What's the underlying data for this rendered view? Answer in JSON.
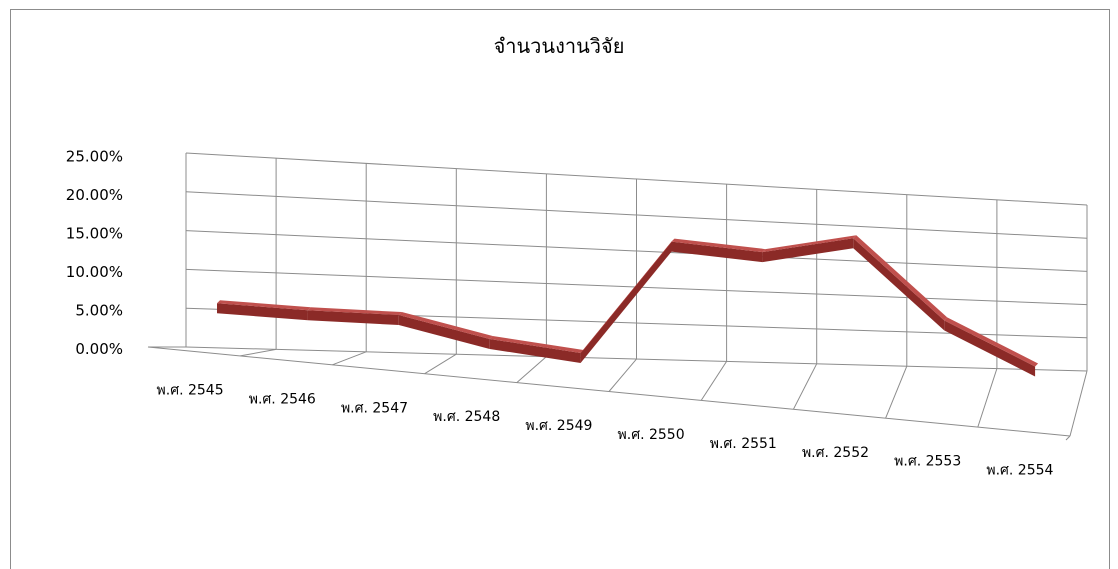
{
  "chart_data": {
    "type": "line",
    "title": "จำนวนงานวิจัย",
    "categories": [
      "พ.ศ. 2545",
      "พ.ศ. 2546",
      "พ.ศ. 2547",
      "พ.ศ. 2548",
      "พ.ศ. 2549",
      "พ.ศ. 2550",
      "พ.ศ. 2551",
      "พ.ศ. 2552",
      "พ.ศ. 2553",
      "พ.ศ. 2554"
    ],
    "series": [
      {
        "values": [
          0.06,
          0.058,
          0.059,
          0.034,
          0.022,
          0.185,
          0.18,
          0.21,
          0.1,
          0.04
        ]
      }
    ],
    "y_ticks": [
      "0.00%",
      "5.00%",
      "10.00%",
      "15.00%",
      "20.00%",
      "25.00%"
    ],
    "ylim": [
      0,
      0.25
    ],
    "grid": true,
    "style": "3d-ribbon",
    "colors": {
      "ribbon_top": "#c0504d",
      "ribbon_side": "#8b2a27",
      "grid": "#8c8c8c"
    }
  }
}
